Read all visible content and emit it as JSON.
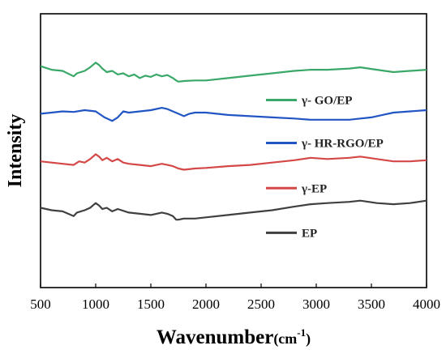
{
  "chart_data": {
    "type": "line",
    "title": "",
    "xlabel": "Wavenumber",
    "xlabel_unit_base": "(cm",
    "xlabel_unit_sup": "-1",
    "xlabel_unit_end": ")",
    "ylabel": "Intensity",
    "xlim": [
      500,
      4000
    ],
    "ylim": [
      0,
      4.6
    ],
    "x_ticks": [
      500,
      1000,
      1500,
      2000,
      2500,
      3000,
      3500,
      4000
    ],
    "y_ticks_shown": false,
    "grid": false,
    "legend_placement": "inline-right",
    "series": [
      {
        "name": "γ- GO/EP",
        "color": "#3aa868",
        "x": [
          500,
          600,
          700,
          800,
          830,
          900,
          950,
          1000,
          1030,
          1060,
          1100,
          1150,
          1200,
          1250,
          1300,
          1350,
          1400,
          1450,
          1500,
          1550,
          1600,
          1650,
          1700,
          1730,
          1750,
          1800,
          1900,
          2000,
          2200,
          2400,
          2600,
          2800,
          2950,
          3100,
          3300,
          3400,
          3550,
          3700,
          3850,
          4000
        ],
        "y": [
          3.72,
          3.66,
          3.64,
          3.55,
          3.6,
          3.64,
          3.7,
          3.78,
          3.74,
          3.68,
          3.62,
          3.64,
          3.58,
          3.6,
          3.55,
          3.58,
          3.52,
          3.56,
          3.54,
          3.58,
          3.55,
          3.57,
          3.52,
          3.48,
          3.46,
          3.47,
          3.48,
          3.48,
          3.52,
          3.56,
          3.6,
          3.64,
          3.66,
          3.66,
          3.68,
          3.7,
          3.66,
          3.62,
          3.64,
          3.66
        ]
      },
      {
        "name": "γ- HR-RGO/EP",
        "color": "#2255c4",
        "x": [
          500,
          600,
          700,
          800,
          900,
          1000,
          1080,
          1150,
          1200,
          1250,
          1300,
          1400,
          1500,
          1600,
          1650,
          1700,
          1750,
          1800,
          1850,
          1900,
          2000,
          2200,
          2400,
          2600,
          2800,
          2950,
          3100,
          3300,
          3400,
          3500,
          3600,
          3700,
          3850,
          4000
        ],
        "y": [
          2.92,
          2.94,
          2.96,
          2.95,
          2.98,
          2.96,
          2.86,
          2.8,
          2.86,
          2.96,
          2.94,
          2.96,
          2.98,
          3.02,
          3.0,
          2.96,
          2.92,
          2.88,
          2.92,
          2.94,
          2.94,
          2.9,
          2.88,
          2.86,
          2.84,
          2.82,
          2.82,
          2.82,
          2.84,
          2.86,
          2.9,
          2.94,
          2.96,
          2.98
        ]
      },
      {
        "name": "γ-EP",
        "color": "#d44848",
        "x": [
          500,
          600,
          700,
          800,
          850,
          900,
          950,
          1000,
          1030,
          1060,
          1100,
          1150,
          1200,
          1250,
          1300,
          1400,
          1500,
          1600,
          1650,
          1700,
          1750,
          1800,
          1900,
          2000,
          2200,
          2400,
          2600,
          2800,
          2950,
          3100,
          3300,
          3400,
          3550,
          3700,
          3850,
          4000
        ],
        "y": [
          2.12,
          2.1,
          2.08,
          2.06,
          2.12,
          2.1,
          2.16,
          2.24,
          2.2,
          2.14,
          2.18,
          2.12,
          2.16,
          2.1,
          2.08,
          2.06,
          2.04,
          2.08,
          2.06,
          2.04,
          2.0,
          1.98,
          2.0,
          2.01,
          2.04,
          2.06,
          2.1,
          2.14,
          2.18,
          2.16,
          2.18,
          2.2,
          2.16,
          2.12,
          2.12,
          2.14
        ]
      },
      {
        "name": "EP",
        "color": "#404040",
        "x": [
          500,
          600,
          700,
          800,
          830,
          900,
          950,
          1000,
          1030,
          1060,
          1100,
          1150,
          1200,
          1300,
          1400,
          1500,
          1600,
          1650,
          1700,
          1730,
          1750,
          1800,
          1900,
          2000,
          2200,
          2400,
          2600,
          2800,
          2950,
          3100,
          3300,
          3400,
          3550,
          3700,
          3850,
          4000
        ],
        "y": [
          1.34,
          1.3,
          1.28,
          1.2,
          1.26,
          1.3,
          1.34,
          1.42,
          1.38,
          1.32,
          1.34,
          1.28,
          1.32,
          1.26,
          1.24,
          1.22,
          1.26,
          1.24,
          1.2,
          1.14,
          1.14,
          1.16,
          1.16,
          1.18,
          1.22,
          1.26,
          1.3,
          1.36,
          1.4,
          1.42,
          1.44,
          1.46,
          1.42,
          1.4,
          1.42,
          1.46
        ]
      }
    ]
  }
}
